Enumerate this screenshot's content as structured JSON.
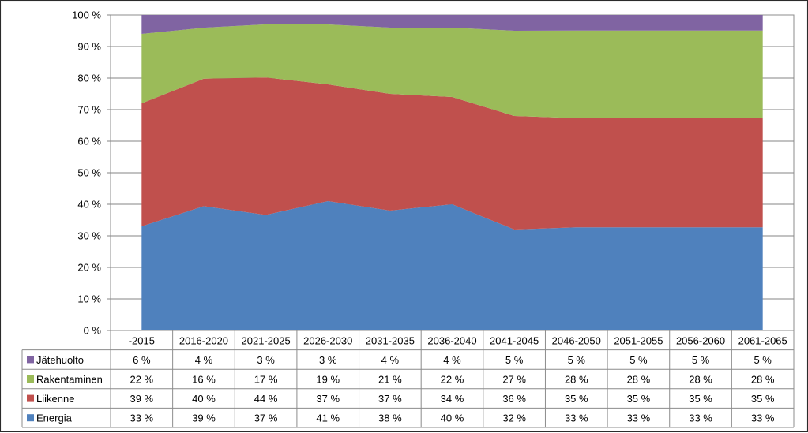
{
  "chart_data": {
    "type": "area",
    "stacked": true,
    "normalized": true,
    "categories": [
      "-2015",
      "2016-2020",
      "2021-2025",
      "2026-2030",
      "2031-2035",
      "2036-2040",
      "2041-2045",
      "2046-2050",
      "2051-2055",
      "2056-2060",
      "2061-2065"
    ],
    "series": [
      {
        "name": "Energia",
        "color": "#4f81bd",
        "values": [
          33,
          39,
          37,
          41,
          38,
          40,
          32,
          33,
          33,
          33,
          33
        ],
        "labels": [
          "33 %",
          "39 %",
          "37 %",
          "41 %",
          "38 %",
          "40 %",
          "32 %",
          "33 %",
          "33 %",
          "33 %",
          "33 %"
        ]
      },
      {
        "name": "Liikenne",
        "color": "#c0504d",
        "values": [
          39,
          40,
          44,
          37,
          37,
          34,
          36,
          35,
          35,
          35,
          35
        ],
        "labels": [
          "39 %",
          "40 %",
          "44 %",
          "37 %",
          "37 %",
          "34 %",
          "36 %",
          "35 %",
          "35 %",
          "35 %",
          "35 %"
        ]
      },
      {
        "name": "Rakentaminen",
        "color": "#9bbb59",
        "values": [
          22,
          16,
          17,
          19,
          21,
          22,
          27,
          28,
          28,
          28,
          28
        ],
        "labels": [
          "22 %",
          "16 %",
          "17 %",
          "19 %",
          "21 %",
          "22 %",
          "27 %",
          "28 %",
          "28 %",
          "28 %",
          "28 %"
        ]
      },
      {
        "name": "Jätehuolto",
        "color": "#8064a2",
        "values": [
          6,
          4,
          3,
          3,
          4,
          4,
          5,
          5,
          5,
          5,
          5
        ],
        "labels": [
          "6 %",
          "4 %",
          "3 %",
          "3 %",
          "4 %",
          "4 %",
          "5 %",
          "5 %",
          "5 %",
          "5 %",
          "5 %"
        ]
      }
    ],
    "ylim": [
      0,
      100
    ],
    "yticks": [
      "0 %",
      "10 %",
      "20 %",
      "30 %",
      "40 %",
      "50 %",
      "60 %",
      "70 %",
      "80 %",
      "90 %",
      "100 %"
    ],
    "grid": true,
    "legend": "data-table"
  }
}
